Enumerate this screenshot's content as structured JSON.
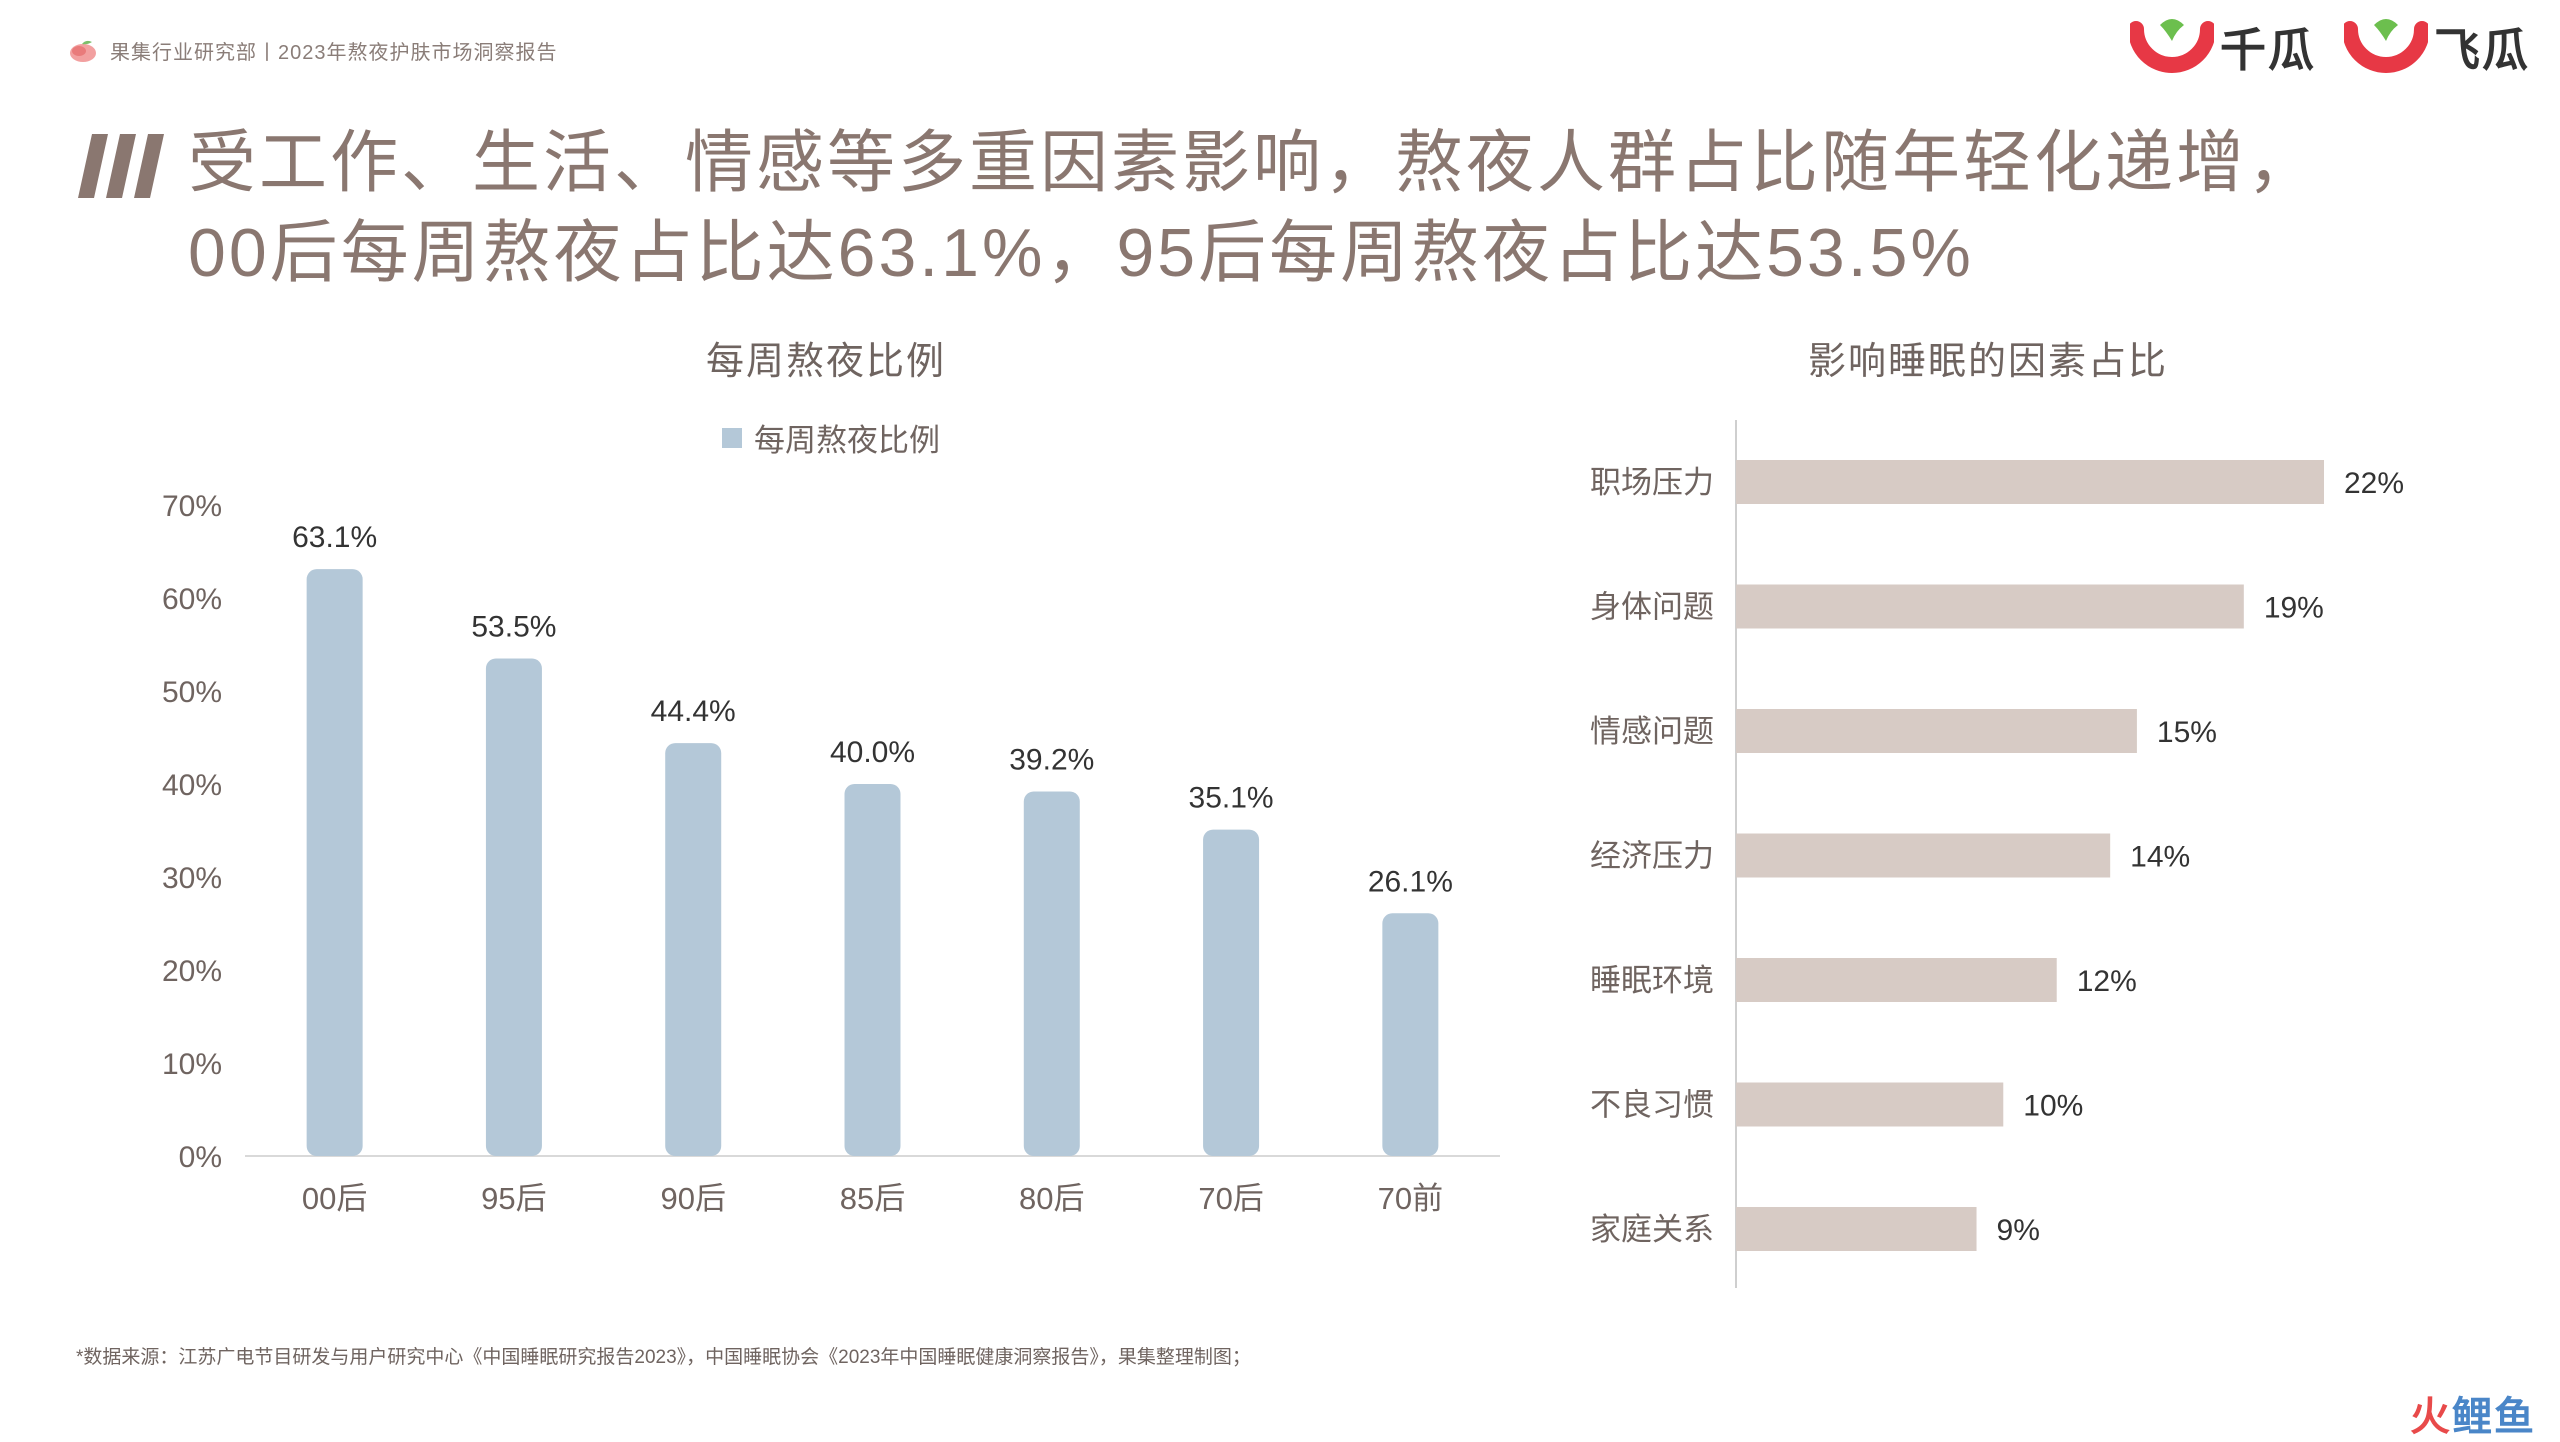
{
  "header": {
    "org_text": "果集行业研究部丨2023年熬夜护肤市场洞察报告"
  },
  "brands": [
    {
      "name": "千瓜",
      "icon": "qiangua-logo-icon",
      "color": "#e73845"
    },
    {
      "name": "飞瓜",
      "icon": "feigua-logo-icon",
      "color": "#e73845"
    }
  ],
  "page": {
    "title_line1": "受工作、生活、情感等多重因素影响，熬夜人群占比随年轻化递增，",
    "title_line2": "00后每周熬夜占比达63.1%，95后每周熬夜占比达53.5%"
  },
  "chart_data": [
    {
      "type": "bar",
      "title": "每周熬夜比例",
      "categories": [
        "00后",
        "95后",
        "90后",
        "85后",
        "80后",
        "70后",
        "70前"
      ],
      "series": [
        {
          "name": "每周熬夜比例",
          "values": [
            63.1,
            53.5,
            44.4,
            40.0,
            39.2,
            35.1,
            26.1
          ],
          "color": "#b4c8d8"
        }
      ],
      "value_labels": [
        "63.1%",
        "53.5%",
        "44.4%",
        "40.0%",
        "39.2%",
        "35.1%",
        "26.1%"
      ],
      "ylim": [
        0,
        70
      ],
      "yticks": [
        0,
        10,
        20,
        30,
        40,
        50,
        60,
        70
      ],
      "ytick_labels": [
        "0%",
        "10%",
        "20%",
        "30%",
        "40%",
        "50%",
        "60%",
        "70%"
      ],
      "legend": "top-center",
      "grid": false
    },
    {
      "type": "bar",
      "orientation": "horizontal",
      "title": "影响睡眠的因素占比",
      "categories": [
        "职场压力",
        "身体问题",
        "情感问题",
        "经济压力",
        "睡眠环境",
        "不良习惯",
        "家庭关系"
      ],
      "values": [
        22,
        19,
        15,
        14,
        12,
        10,
        9
      ],
      "value_labels": [
        "22%",
        "19%",
        "15%",
        "14%",
        "12%",
        "10%",
        "9%"
      ],
      "color": "#d7cbc5",
      "xlim": [
        0,
        22
      ],
      "grid": false
    }
  ],
  "footnote": "*数据来源：江苏广电节目研发与用户研究中心《中国睡眠研究报告2023》，中国睡眠协会《2023年中国睡眠健康洞察报告》，果集整理制图；",
  "corner_mark": {
    "part1": "火",
    "part2": "鲤鱼"
  }
}
